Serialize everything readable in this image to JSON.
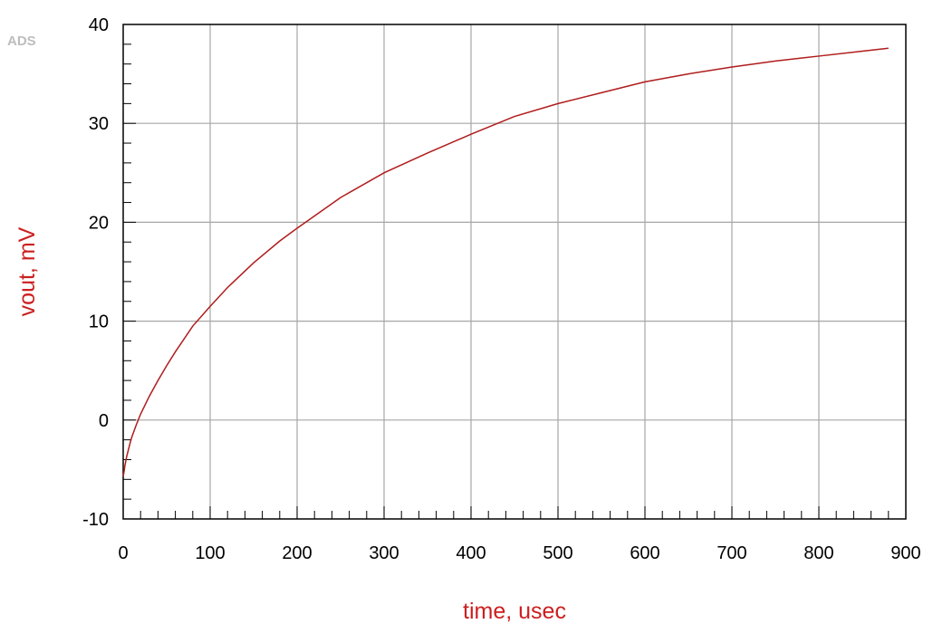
{
  "app": {
    "logo": "ADS"
  },
  "colors": {
    "accent": "#cc1f1f",
    "curve": "#b01c1c",
    "grid": "#a6a6a6",
    "frame": "#000000"
  },
  "chart_data": {
    "type": "line",
    "title": "",
    "xlabel": "time, usec",
    "ylabel": "vout, mV",
    "xlim": [
      0,
      900
    ],
    "ylim": [
      -10,
      40
    ],
    "x_ticks": [
      0,
      100,
      200,
      300,
      400,
      500,
      600,
      700,
      800,
      900
    ],
    "y_ticks": [
      -10,
      0,
      10,
      20,
      30,
      40
    ],
    "grid": true,
    "series": [
      {
        "x": [
          0,
          1,
          2,
          4,
          6,
          8,
          10,
          15,
          20,
          30,
          40,
          50,
          60,
          80,
          100,
          120,
          150,
          180,
          200,
          250,
          300,
          350,
          400,
          450,
          500,
          550,
          600,
          650,
          700,
          750,
          800,
          850,
          880
        ],
        "y": [
          -5.7,
          -5.2,
          -4.6,
          -3.7,
          -3.0,
          -2.3,
          -1.7,
          -0.5,
          0.6,
          2.4,
          4.0,
          5.5,
          6.9,
          9.5,
          11.5,
          13.4,
          15.9,
          18.1,
          19.4,
          22.5,
          25.0,
          27.0,
          28.9,
          30.7,
          32.0,
          33.1,
          34.2,
          35.0,
          35.7,
          36.3,
          36.8,
          37.3,
          37.6
        ]
      }
    ]
  }
}
